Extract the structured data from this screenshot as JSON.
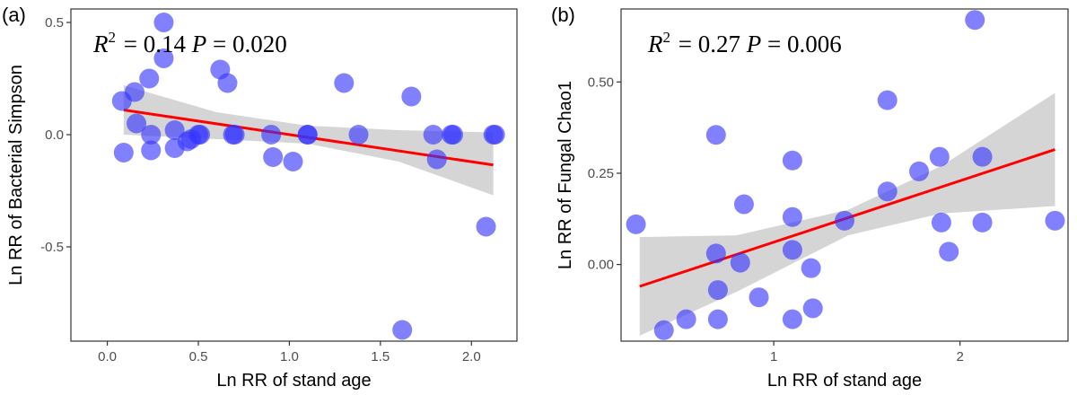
{
  "chart_data": [
    {
      "type": "scatter",
      "panel_label": "(a)",
      "xlabel": "Ln RR of stand age",
      "ylabel": "Ln RR of Bacterial Simpson",
      "xlim": [
        -0.2,
        2.25
      ],
      "ylim": [
        -0.92,
        0.56
      ],
      "x_ticks": [
        0.0,
        0.5,
        1.0,
        1.5,
        2.0
      ],
      "x_tick_labels": [
        "0.0",
        "0.5",
        "1.0",
        "1.5",
        "2.0"
      ],
      "y_ticks": [
        -0.5,
        0.0,
        0.5
      ],
      "y_tick_labels": [
        "-0.5",
        "0.0",
        "0.5"
      ],
      "grid": false,
      "annotation": {
        "r2_symbol": "R",
        "r2_exp": "2",
        "r2_value": "= 0.14",
        "p_symbol": "P",
        "p_value": "= 0.020"
      },
      "fit_line": {
        "x": [
          0.09,
          2.12
        ],
        "y": [
          0.11,
          -0.135
        ],
        "color": "#ff0000"
      },
      "confidence_band": {
        "x": [
          0.09,
          0.6,
          1.1,
          1.6,
          2.12
        ],
        "upper": [
          0.22,
          0.1,
          0.04,
          0.02,
          0.01
        ],
        "lower": [
          0.0,
          -0.02,
          -0.04,
          -0.12,
          -0.27
        ],
        "color": "#bebebe"
      },
      "point_color": "#3333ff",
      "x": [
        0.31,
        0.08,
        0.09,
        0.15,
        0.16,
        0.23,
        0.24,
        0.31,
        0.24,
        0.37,
        0.37,
        0.44,
        0.46,
        0.5,
        0.51,
        0.62,
        0.66,
        0.69,
        0.7,
        0.9,
        0.91,
        1.02,
        1.1,
        1.1,
        1.3,
        1.38,
        1.62,
        1.67,
        1.79,
        1.81,
        1.89,
        1.9,
        2.08,
        2.12,
        2.13
      ],
      "y": [
        0.5,
        0.15,
        -0.08,
        0.19,
        0.05,
        0.25,
        0.0,
        0.34,
        -0.07,
        0.02,
        -0.06,
        -0.03,
        -0.02,
        0.0,
        0.0,
        0.29,
        0.23,
        0.0,
        0.0,
        0.0,
        -0.1,
        -0.12,
        0.0,
        0.0,
        0.23,
        0.0,
        -0.87,
        0.17,
        0.0,
        -0.11,
        0.0,
        0.0,
        -0.41,
        0.0,
        0.0
      ]
    },
    {
      "type": "scatter",
      "panel_label": "(b)",
      "xlabel": "Ln RR of stand age",
      "ylabel": "Ln RR of Fungal Chao1",
      "xlim": [
        0.18,
        2.58
      ],
      "ylim": [
        -0.21,
        0.7
      ],
      "x_ticks": [
        1,
        2
      ],
      "x_tick_labels": [
        "1",
        "2"
      ],
      "y_ticks": [
        0.0,
        0.25,
        0.5
      ],
      "y_tick_labels": [
        "0.00",
        "0.25",
        "0.50"
      ],
      "grid": false,
      "annotation": {
        "r2_symbol": "R",
        "r2_exp": "2",
        "r2_value": "= 0.27",
        "p_symbol": "P",
        "p_value": "= 0.006"
      },
      "fit_line": {
        "x": [
          0.28,
          2.51
        ],
        "y": [
          -0.06,
          0.315
        ],
        "color": "#ff0000"
      },
      "confidence_band": {
        "x": [
          0.28,
          0.8,
          1.4,
          1.9,
          2.51
        ],
        "upper": [
          0.075,
          0.08,
          0.15,
          0.27,
          0.47
        ],
        "lower": [
          -0.195,
          -0.075,
          0.08,
          0.14,
          0.16
        ],
        "color": "#bebebe"
      },
      "point_color": "#3333ff",
      "x": [
        0.26,
        0.41,
        0.53,
        0.69,
        0.69,
        0.7,
        0.7,
        0.82,
        0.84,
        0.92,
        1.1,
        1.1,
        1.1,
        1.1,
        1.2,
        1.21,
        1.38,
        1.61,
        1.61,
        1.78,
        1.89,
        1.9,
        1.94,
        2.08,
        2.12,
        2.12,
        2.51
      ],
      "y": [
        0.11,
        -0.18,
        -0.15,
        0.355,
        0.03,
        -0.07,
        -0.15,
        0.005,
        0.165,
        -0.09,
        0.285,
        0.13,
        0.04,
        -0.15,
        -0.01,
        -0.12,
        0.12,
        0.45,
        0.2,
        0.255,
        0.295,
        0.115,
        0.035,
        0.67,
        0.295,
        0.115,
        0.12
      ]
    }
  ]
}
